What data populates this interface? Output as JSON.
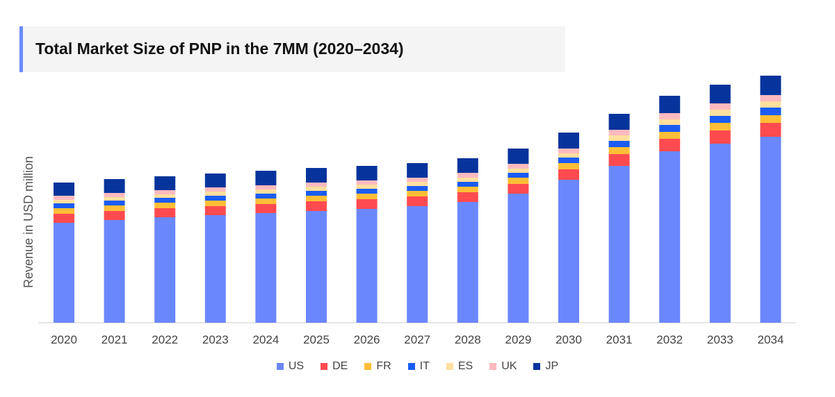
{
  "chart_data": {
    "type": "bar",
    "stacked": true,
    "title": "Total Market Size of PNP in the 7MM (2020–2034)",
    "xlabel": "",
    "ylabel": "Revenue in USD million",
    "ylim": [
      0,
      370
    ],
    "grid": false,
    "legend_position": "bottom",
    "categories": [
      "2020",
      "2021",
      "2022",
      "2023",
      "2024",
      "2025",
      "2026",
      "2027",
      "2028",
      "2029",
      "2030",
      "2031",
      "2032",
      "2033",
      "2034"
    ],
    "series": [
      {
        "name": "US",
        "color": "#6b87fd",
        "values": [
          144,
          148,
          152,
          155,
          158,
          161,
          164,
          168,
          174,
          186,
          206,
          226,
          247,
          258,
          268
        ]
      },
      {
        "name": "DE",
        "color": "#ff4b4f",
        "values": [
          13,
          13,
          13,
          13,
          13,
          14,
          14,
          14,
          14,
          14,
          15,
          17,
          18,
          19,
          20
        ]
      },
      {
        "name": "FR",
        "color": "#ffbe37",
        "values": [
          8,
          8,
          8,
          8,
          8,
          8,
          8,
          8,
          8,
          9,
          9,
          10,
          10,
          11,
          11
        ]
      },
      {
        "name": "IT",
        "color": "#1a5cf2",
        "values": [
          7,
          7,
          7,
          7,
          7,
          7,
          7,
          7,
          7,
          7,
          8,
          9,
          10,
          10,
          11
        ]
      },
      {
        "name": "ES",
        "color": "#ffdf9e",
        "values": [
          5,
          5,
          5,
          6,
          6,
          6,
          6,
          6,
          6,
          6,
          6,
          8,
          8,
          9,
          9
        ]
      },
      {
        "name": "UK",
        "color": "#ffbabf",
        "values": [
          6,
          6,
          6,
          6,
          6,
          6,
          6,
          6,
          7,
          7,
          7,
          8,
          9,
          9,
          9
        ]
      },
      {
        "name": "JP",
        "color": "#07349c",
        "values": [
          19,
          20,
          20,
          20,
          21,
          21,
          21,
          21,
          21,
          22,
          23,
          23,
          25,
          27,
          28
        ]
      }
    ]
  }
}
